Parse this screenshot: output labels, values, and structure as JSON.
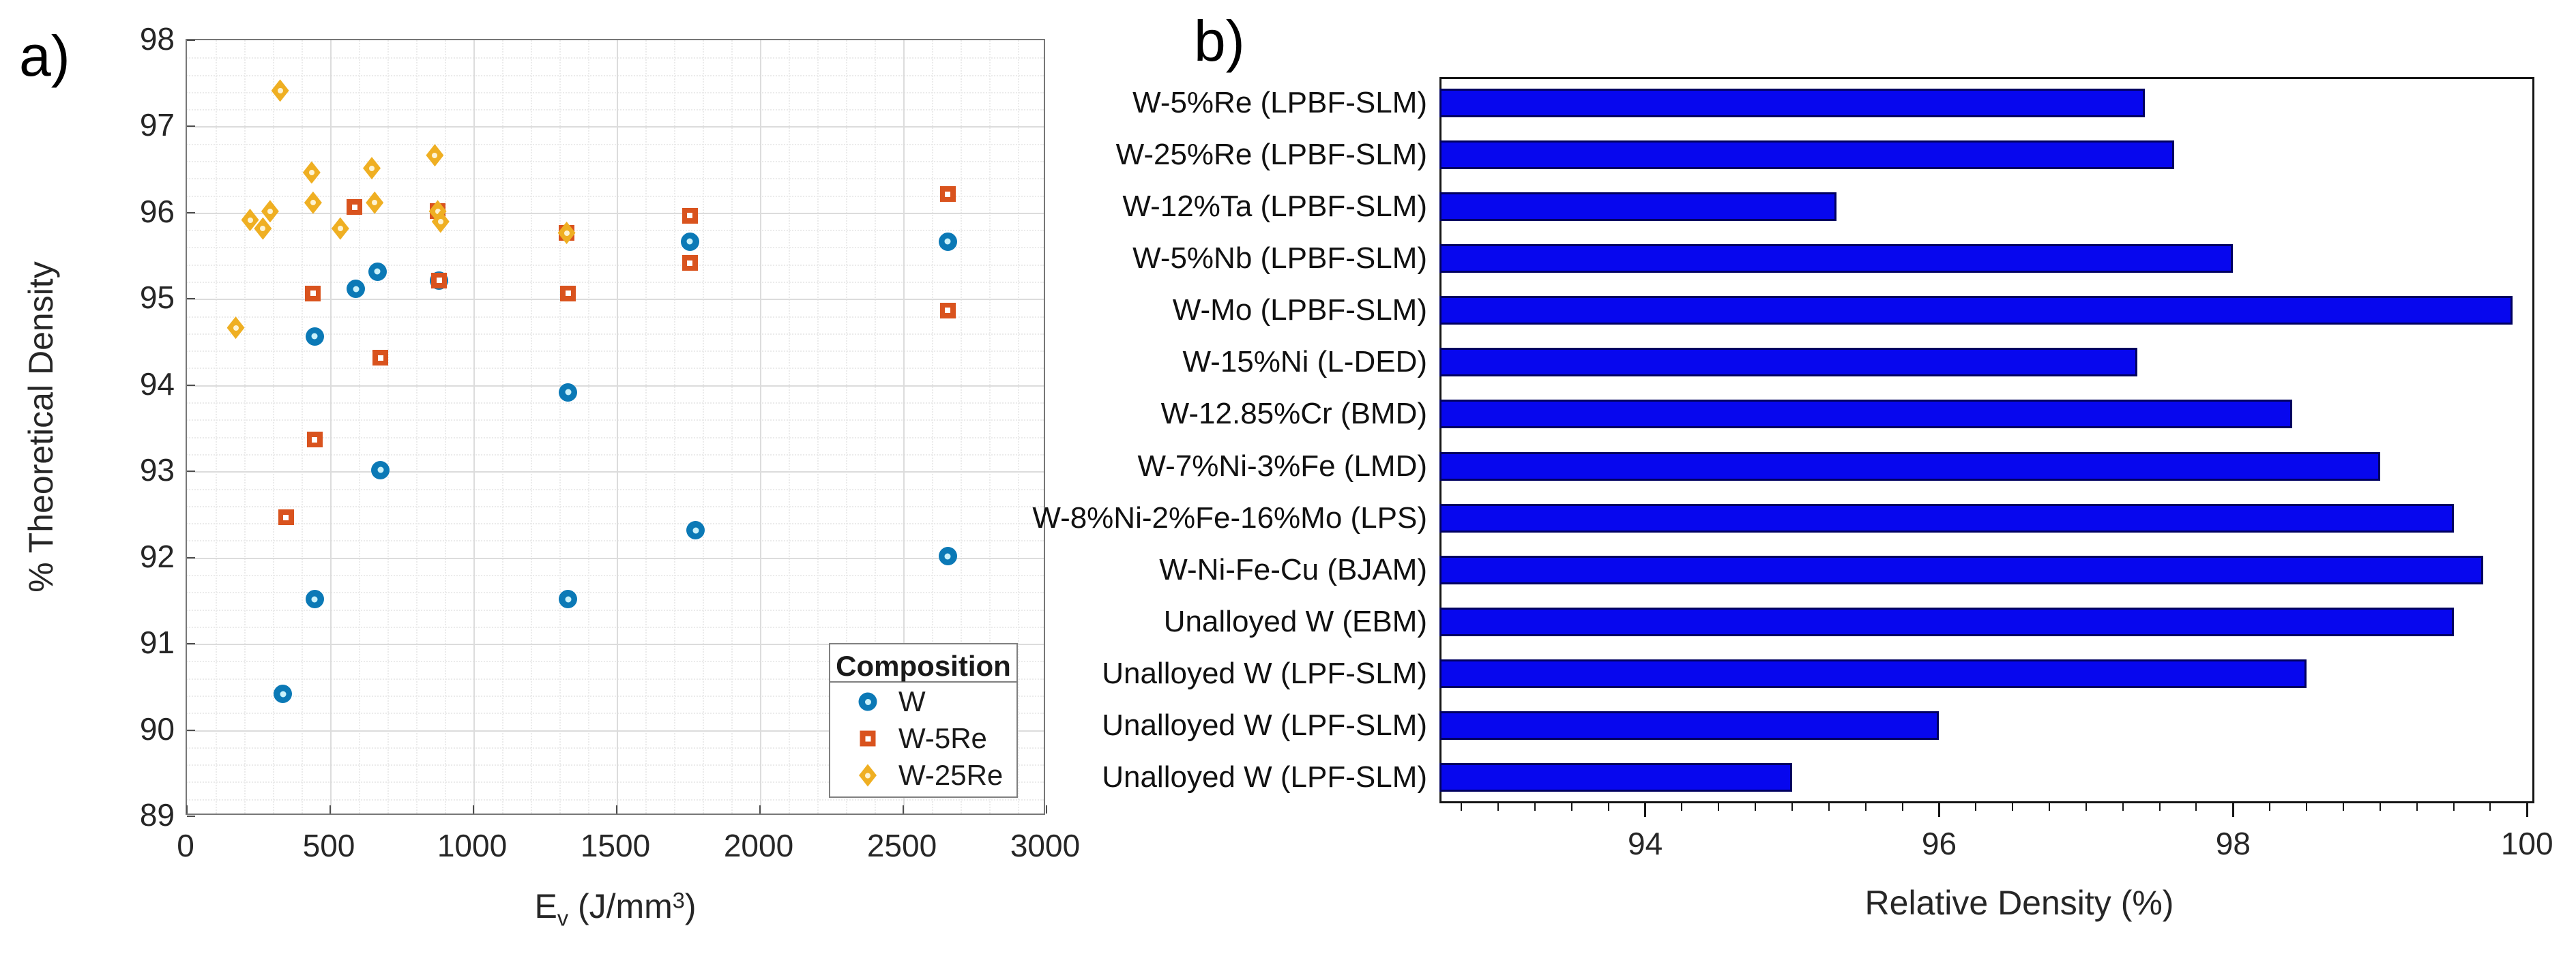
{
  "panel_a": {
    "label": "a)",
    "ylabel": "% Theoretical Density",
    "xlabel_parts": {
      "base": "E",
      "sub": "v",
      "mid": " (J/mm",
      "sup": "3",
      "end": ")"
    },
    "legend": {
      "title": "Composition",
      "items": [
        {
          "label": "W",
          "marker": "circle",
          "color": "#0b79b6"
        },
        {
          "label": "W-5Re",
          "marker": "square",
          "color": "#d9531e"
        },
        {
          "label": "W-25Re",
          "marker": "diamond",
          "color": "#efaf22"
        }
      ]
    },
    "chart_data": {
      "type": "scatter",
      "xlabel": "E_v (J/mm^3)",
      "ylabel": "% Theoretical Density",
      "xlim": [
        0,
        3000
      ],
      "ylim": [
        89,
        98
      ],
      "xticks": [
        0,
        500,
        1000,
        1500,
        2000,
        2500,
        3000
      ],
      "yticks": [
        89,
        90,
        91,
        92,
        93,
        94,
        95,
        96,
        97,
        98
      ],
      "x_minor_step": 100,
      "y_minor_step": 0.2,
      "grid": "major+minor",
      "legend_position": "bottom-right",
      "series": [
        {
          "name": "W",
          "marker": "circle",
          "color": "#0b79b6",
          "points": [
            [
              340,
              90.4
            ],
            [
              450,
              91.5
            ],
            [
              450,
              94.55
            ],
            [
              595,
              95.1
            ],
            [
              670,
              95.3
            ],
            [
              680,
              93.0
            ],
            [
              885,
              95.2
            ],
            [
              1335,
              93.9
            ],
            [
              1335,
              91.5
            ],
            [
              1760,
              95.65
            ],
            [
              1780,
              92.3
            ],
            [
              2660,
              95.65
            ],
            [
              2660,
              92.0
            ]
          ]
        },
        {
          "name": "W-5Re",
          "marker": "square",
          "color": "#d9531e",
          "points": [
            [
              350,
              92.45
            ],
            [
              445,
              95.05
            ],
            [
              450,
              93.35
            ],
            [
              590,
              96.05
            ],
            [
              680,
              94.3
            ],
            [
              880,
              96.0
            ],
            [
              885,
              95.2
            ],
            [
              1330,
              95.75
            ],
            [
              1335,
              95.05
            ],
            [
              1760,
              95.95
            ],
            [
              1760,
              95.4
            ],
            [
              2660,
              96.2
            ],
            [
              2660,
              94.85
            ]
          ]
        },
        {
          "name": "W-25Re",
          "marker": "diamond",
          "color": "#efaf22",
          "points": [
            [
              175,
              94.65
            ],
            [
              225,
              95.9
            ],
            [
              270,
              95.8
            ],
            [
              295,
              96.0
            ],
            [
              330,
              97.4
            ],
            [
              440,
              96.45
            ],
            [
              445,
              96.1
            ],
            [
              540,
              95.8
            ],
            [
              650,
              96.5
            ],
            [
              660,
              96.1
            ],
            [
              870,
              96.65
            ],
            [
              880,
              96.0
            ],
            [
              890,
              95.88
            ],
            [
              1330,
              95.75
            ]
          ]
        }
      ]
    }
  },
  "panel_b": {
    "label": "b)",
    "xlabel": "Relative Density (%)",
    "chart_data": {
      "type": "bar",
      "orientation": "horizontal",
      "categories": [
        "W-5%Re (LPBF-SLM)",
        "W-25%Re (LPBF-SLM)",
        "W-12%Ta (LPBF-SLM)",
        "W-5%Nb (LPBF-SLM)",
        "W-Mo (LPBF-SLM)",
        "W-15%Ni (L-DED)",
        "W-12.85%Cr (BMD)",
        "W-7%Ni-3%Fe (LMD)",
        "W-8%Ni-2%Fe-16%Mo (LPS)",
        "W-Ni-Fe-Cu (BJAM)",
        "Unalloyed W (EBM)",
        "Unalloyed W (LPF-SLM)",
        "Unalloyed W (LPF-SLM)",
        "Unalloyed W (LPF-SLM)"
      ],
      "values": [
        97.4,
        97.6,
        95.3,
        98.0,
        99.9,
        97.35,
        98.4,
        99.0,
        99.5,
        99.7,
        99.5,
        98.5,
        96.0,
        95.0
      ],
      "xlabel": "Relative Density (%)",
      "xticks": [
        94,
        96,
        98,
        100
      ],
      "x_minor_step": 0.25,
      "xlim": [
        92.6,
        100.05
      ],
      "grid": "off",
      "bar_color": "#0707ee",
      "bar_edge_color": "#000060"
    }
  }
}
